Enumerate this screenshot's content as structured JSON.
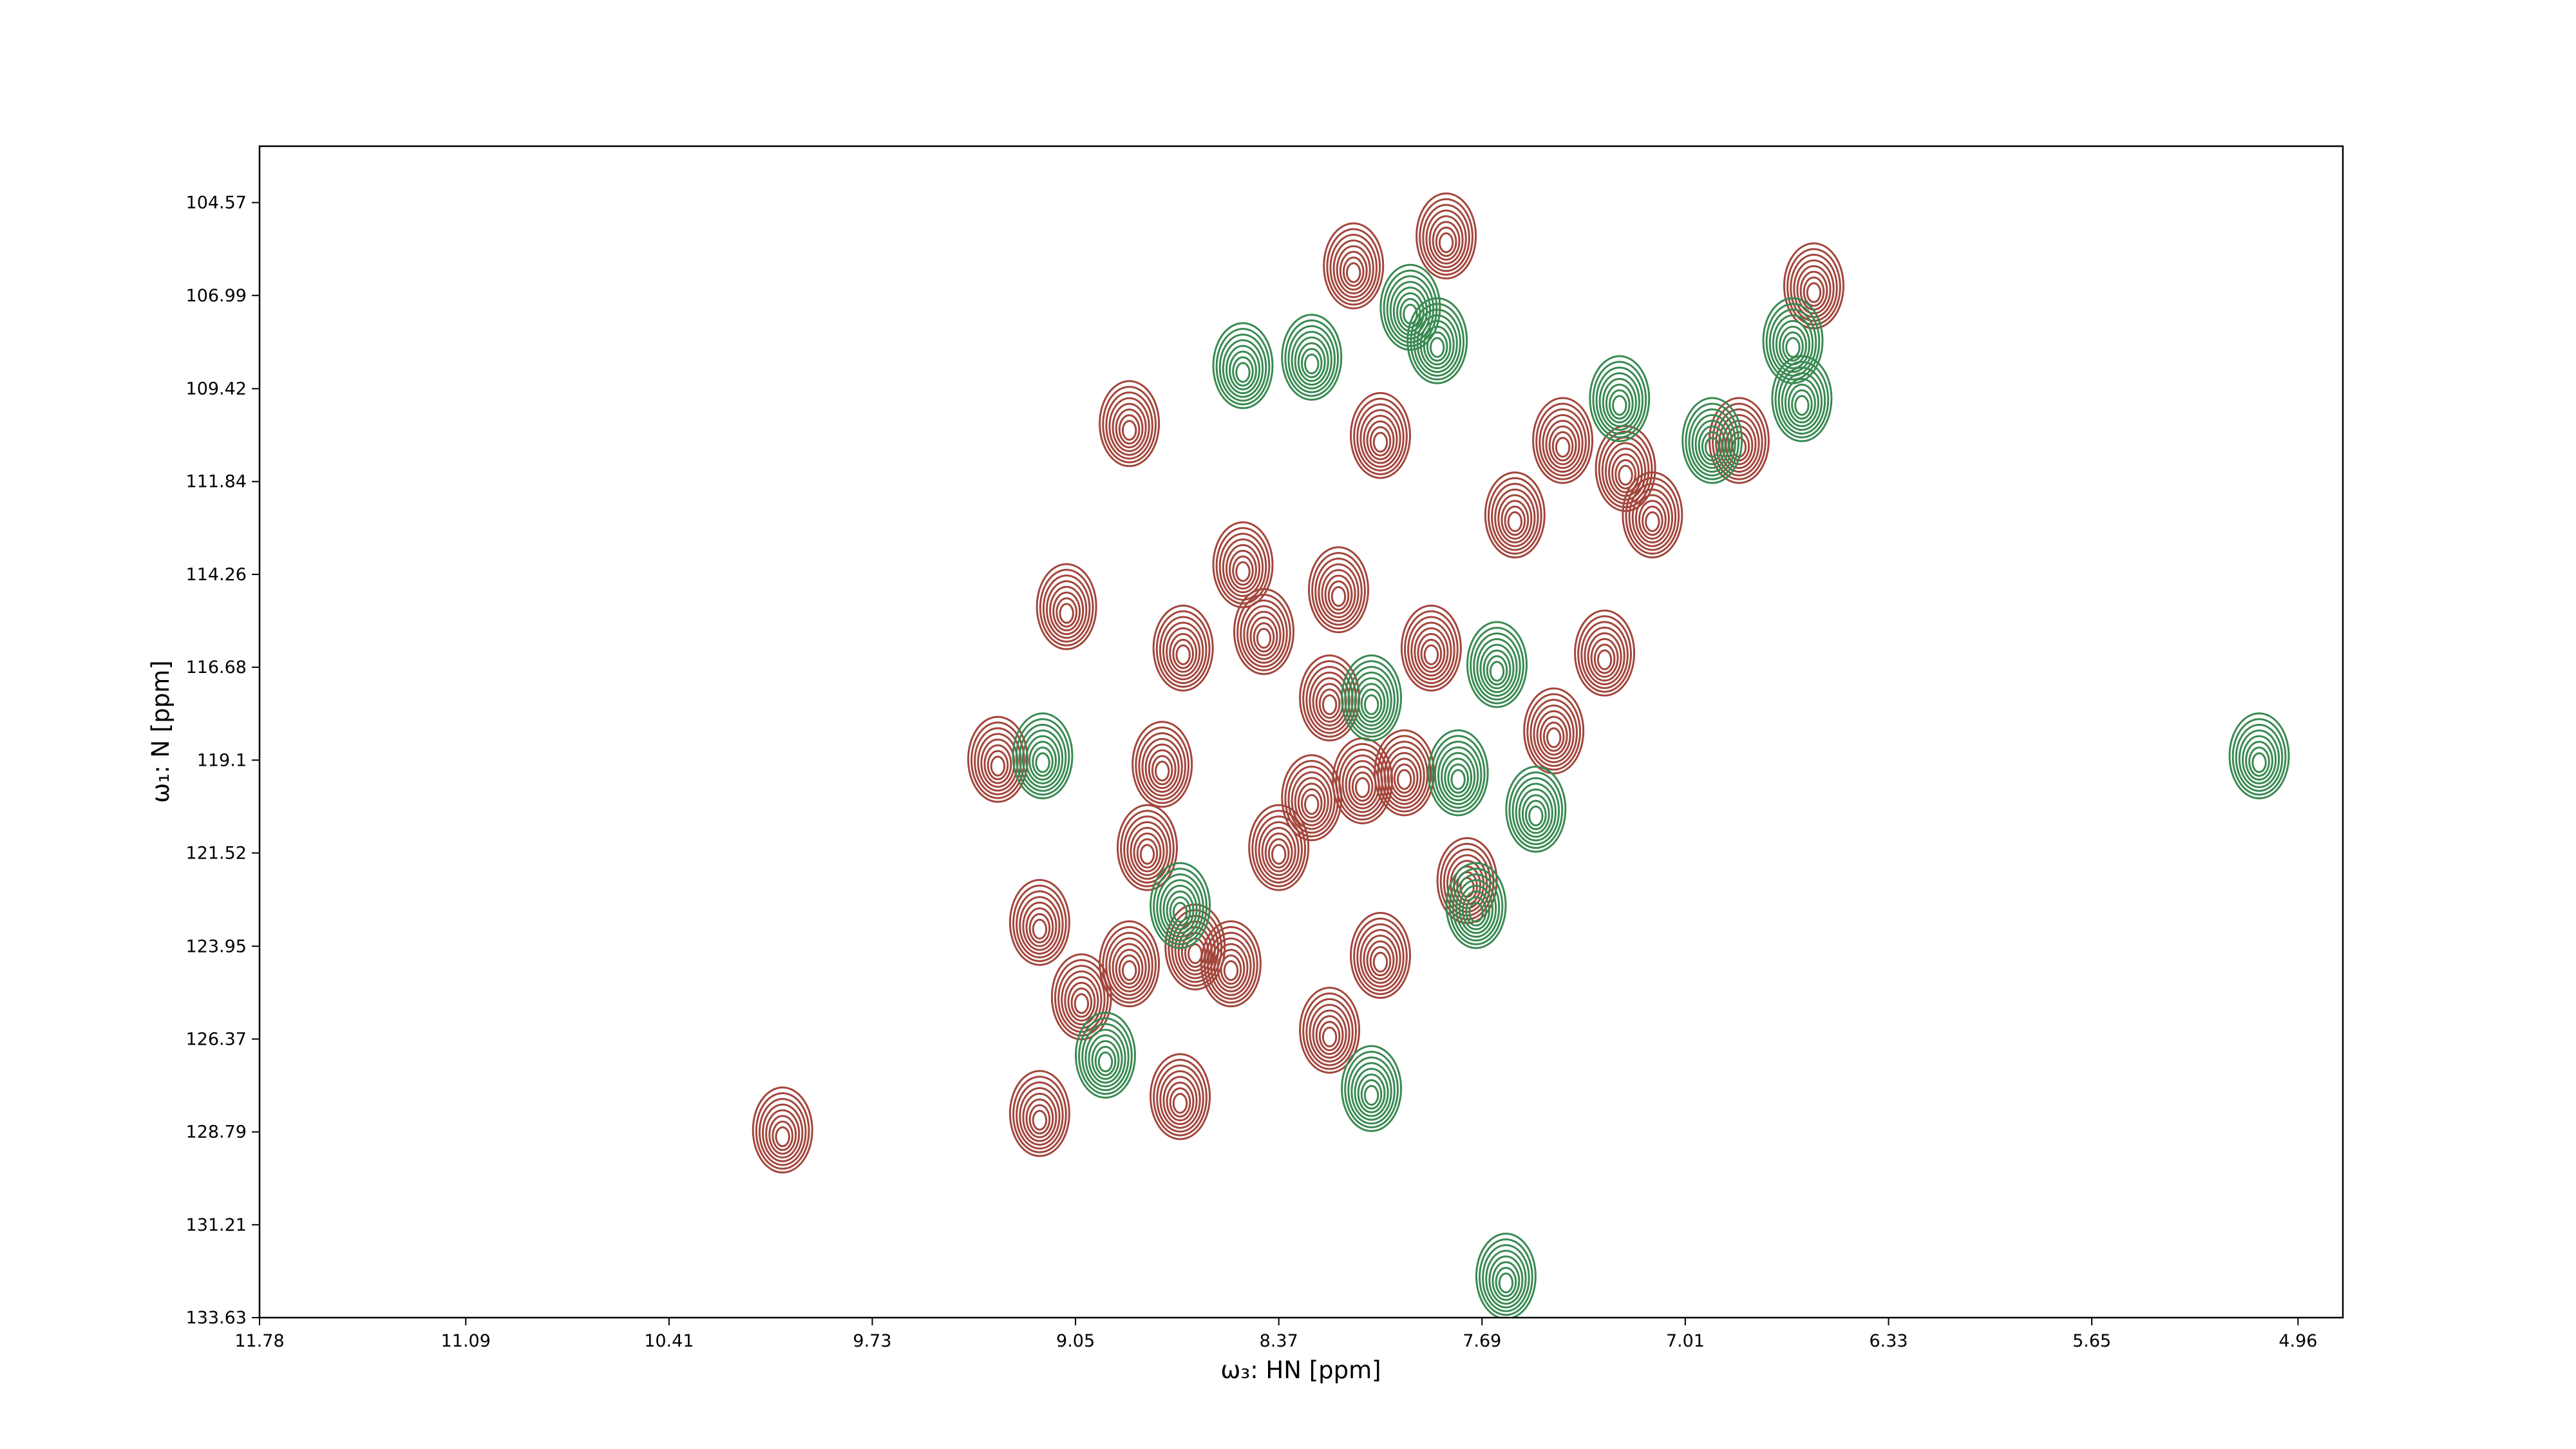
{
  "chart_data": {
    "type": "contour",
    "x_label": "ω₃: HN [ppm]",
    "y_label": "ω₁: N [ppm]",
    "xlim": [
      11.78,
      4.81
    ],
    "ylim": [
      133.63,
      103.1
    ],
    "xticks": [
      11.78,
      11.09,
      10.41,
      9.73,
      9.05,
      8.37,
      7.69,
      7.01,
      6.33,
      5.65,
      4.96
    ],
    "yticks": [
      104.57,
      106.99,
      109.42,
      111.84,
      114.26,
      116.68,
      119.1,
      121.52,
      123.95,
      126.37,
      128.79,
      131.21,
      133.63
    ],
    "series": [
      {
        "color": "#a3463c",
        "x": [
          8.87,
          9.08,
          8.69,
          9.31,
          9.17,
          7.81,
          8.12,
          8.03,
          7.42,
          7.21,
          7.12,
          7.58,
          7.28,
          8.49,
          8.17,
          7.86,
          7.45,
          7.74,
          8.2,
          8.42,
          8.26,
          8.87,
          8.65,
          9.03,
          9.17,
          8.7,
          10.03,
          6.58,
          6.83,
          7.95,
          8.09,
          8.76,
          8.53,
          8.03,
          8.2,
          8.37,
          8.81
        ],
        "y": [
          110.33,
          115.1,
          116.18,
          119.08,
          123.33,
          105.44,
          106.22,
          110.64,
          110.77,
          111.5,
          112.71,
          112.71,
          116.31,
          114.01,
          114.66,
          116.18,
          118.34,
          122.24,
          117.48,
          115.75,
          120.08,
          124.41,
          123.97,
          125.27,
          128.31,
          127.87,
          128.74,
          106.74,
          110.77,
          119.43,
          119.64,
          119.21,
          124.41,
          124.19,
          126.14,
          121.38,
          121.38
        ]
      },
      {
        "color": "#3a8a52",
        "x": [
          9.16,
          8.49,
          7.93,
          7.64,
          7.77,
          7.51,
          7.71,
          8.7,
          8.95,
          8.06,
          7.61,
          7.23,
          6.92,
          6.62,
          6.65,
          8.06,
          7.84,
          8.26,
          5.09
        ],
        "y": [
          118.99,
          108.82,
          107.3,
          116.61,
          119.43,
          120.38,
          122.89,
          122.89,
          126.79,
          127.66,
          132.55,
          109.68,
          110.77,
          109.68,
          108.17,
          117.48,
          108.17,
          108.6,
          118.99
        ]
      }
    ]
  }
}
